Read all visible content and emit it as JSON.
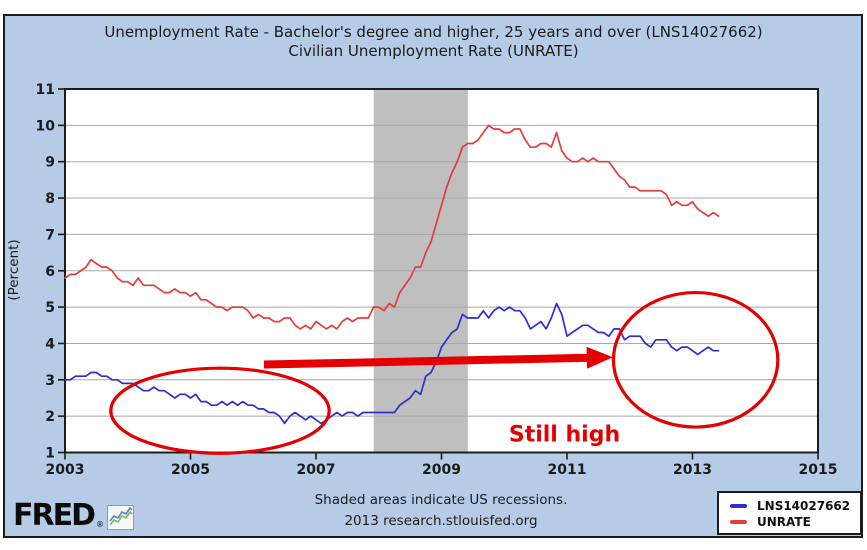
{
  "title": {
    "line1": "Unemployment Rate - Bachelor's degree and higher, 25 years and over (LNS14027662)",
    "line2": "Civilian Unemployment Rate (UNRATE)"
  },
  "footer": {
    "recessions_note": "Shaded areas indicate US recessions.",
    "source": "2013 research.stlouisfed.org"
  },
  "logo": {
    "text": "FRED",
    "registered_mark": "®"
  },
  "legend": {
    "items": [
      {
        "label": "LNS14027662",
        "color": "#2d2dd0"
      },
      {
        "label": "UNRATE",
        "color": "#e43c3c"
      }
    ]
  },
  "chart_data": {
    "type": "line",
    "title": "Unemployment Rate - Bachelor's degree and higher, 25 years and over (LNS14027662); Civilian Unemployment Rate (UNRATE)",
    "ylabel": "(Percent)",
    "ylim": [
      1,
      11
    ],
    "yticks": [
      1,
      2,
      3,
      4,
      5,
      6,
      7,
      8,
      9,
      10,
      11
    ],
    "xlim": [
      2003,
      2015
    ],
    "xticks": [
      2003,
      2005,
      2007,
      2009,
      2011,
      2013,
      2015
    ],
    "grid": "horizontal",
    "legend_position": "bottom-right",
    "x_start": 2003.0,
    "x_step": 0.0833333,
    "recession_bands": [
      [
        2007.92,
        2009.42
      ]
    ],
    "series": [
      {
        "name": "LNS14027662",
        "color": "#2d2dd0",
        "values": [
          3.0,
          3.0,
          3.1,
          3.1,
          3.1,
          3.2,
          3.2,
          3.1,
          3.1,
          3.0,
          3.0,
          2.9,
          2.9,
          2.9,
          2.8,
          2.7,
          2.7,
          2.8,
          2.7,
          2.7,
          2.6,
          2.5,
          2.6,
          2.6,
          2.5,
          2.6,
          2.4,
          2.4,
          2.3,
          2.3,
          2.4,
          2.3,
          2.4,
          2.3,
          2.4,
          2.3,
          2.3,
          2.2,
          2.2,
          2.1,
          2.1,
          2.0,
          1.8,
          2.0,
          2.1,
          2.0,
          1.9,
          2.0,
          1.9,
          1.8,
          1.9,
          2.0,
          2.1,
          2.0,
          2.1,
          2.1,
          2.0,
          2.1,
          2.1,
          2.1,
          2.1,
          2.1,
          2.1,
          2.1,
          2.3,
          2.4,
          2.5,
          2.7,
          2.6,
          3.1,
          3.2,
          3.5,
          3.9,
          4.1,
          4.3,
          4.4,
          4.8,
          4.7,
          4.7,
          4.7,
          4.9,
          4.7,
          4.9,
          5.0,
          4.9,
          5.0,
          4.9,
          4.9,
          4.7,
          4.4,
          4.5,
          4.6,
          4.4,
          4.7,
          5.1,
          4.8,
          4.2,
          4.3,
          4.4,
          4.5,
          4.5,
          4.4,
          4.3,
          4.3,
          4.2,
          4.4,
          4.4,
          4.1,
          4.2,
          4.2,
          4.2,
          4.0,
          3.9,
          4.1,
          4.1,
          4.1,
          3.9,
          3.8,
          3.9,
          3.9,
          3.8,
          3.7,
          3.8,
          3.9,
          3.8,
          3.8
        ]
      },
      {
        "name": "UNRATE",
        "color": "#e43c3c",
        "values": [
          5.8,
          5.9,
          5.9,
          6.0,
          6.1,
          6.3,
          6.2,
          6.1,
          6.1,
          6.0,
          5.8,
          5.7,
          5.7,
          5.6,
          5.8,
          5.6,
          5.6,
          5.6,
          5.5,
          5.4,
          5.4,
          5.5,
          5.4,
          5.4,
          5.3,
          5.4,
          5.2,
          5.2,
          5.1,
          5.0,
          5.0,
          4.9,
          5.0,
          5.0,
          5.0,
          4.9,
          4.7,
          4.8,
          4.7,
          4.7,
          4.6,
          4.6,
          4.7,
          4.7,
          4.5,
          4.4,
          4.5,
          4.4,
          4.6,
          4.5,
          4.4,
          4.5,
          4.4,
          4.6,
          4.7,
          4.6,
          4.7,
          4.7,
          4.7,
          5.0,
          5.0,
          4.9,
          5.1,
          5.0,
          5.4,
          5.6,
          5.8,
          6.1,
          6.1,
          6.5,
          6.8,
          7.3,
          7.8,
          8.3,
          8.7,
          9.0,
          9.4,
          9.5,
          9.5,
          9.6,
          9.8,
          10.0,
          9.9,
          9.9,
          9.8,
          9.8,
          9.9,
          9.9,
          9.6,
          9.4,
          9.4,
          9.5,
          9.5,
          9.4,
          9.8,
          9.3,
          9.1,
          9.0,
          9.0,
          9.1,
          9.0,
          9.1,
          9.0,
          9.0,
          9.0,
          8.8,
          8.6,
          8.5,
          8.3,
          8.3,
          8.2,
          8.2,
          8.2,
          8.2,
          8.2,
          8.1,
          7.8,
          7.9,
          7.8,
          7.8,
          7.9,
          7.7,
          7.6,
          7.5,
          7.6,
          7.5
        ]
      }
    ],
    "annotations": {
      "color": "#e40000",
      "ellipses": [
        {
          "cx": 2005.47,
          "cy": 2.15,
          "rx": 1.74,
          "ry": 1.17
        },
        {
          "cx": 2013.05,
          "cy": 3.55,
          "rx": 1.31,
          "ry": 1.85
        }
      ],
      "arrow": {
        "x1": 2006.17,
        "y1": 3.42,
        "x2": 2011.73,
        "y2": 3.62
      },
      "text": {
        "label": "Still high",
        "x": 2010.96,
        "y": 1.52
      }
    },
    "colors": {
      "canvas": "#b6cbe6",
      "plot_bg": "#ffffff",
      "frame": "#1c1c1c",
      "grid": "#a8a8a8",
      "recession": "#bfbfbf",
      "tick_text": "#1b1b1b"
    }
  }
}
